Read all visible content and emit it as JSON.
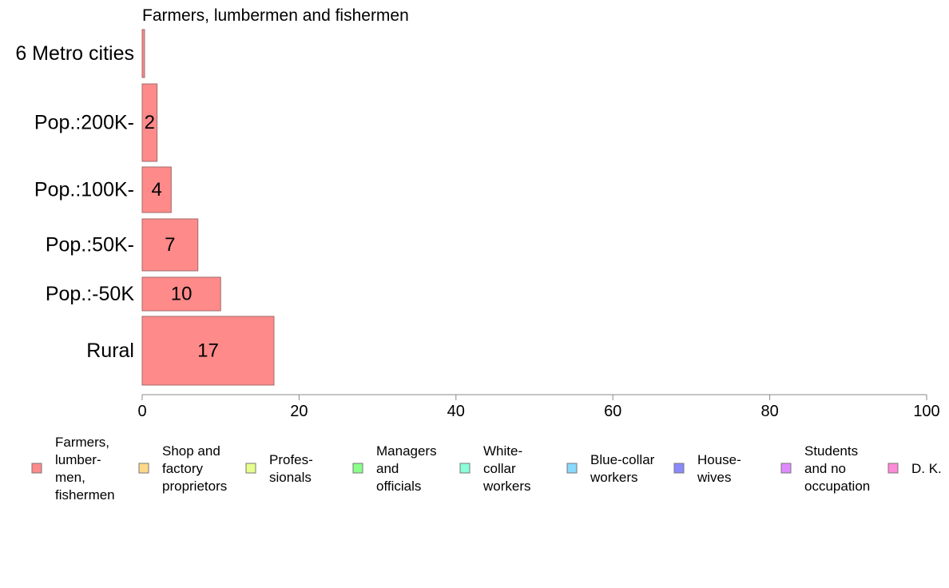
{
  "chart_data": {
    "type": "bar",
    "orientation": "horizontal",
    "title": "Farmers, lumbermen and fishermen",
    "xlabel": "",
    "ylabel": "",
    "xlim": [
      0,
      100
    ],
    "xticks": [
      "0",
      "20",
      "40",
      "60",
      "80",
      "100"
    ],
    "grid": false,
    "categories": [
      "6 Metro cities",
      "Pop.:200K-",
      "Pop.:100K-",
      "Pop.:50K-",
      "Pop.:-50K",
      "Rural"
    ],
    "series": [
      {
        "name": "Farmers, lumbermen, fishermen",
        "color": "#ff8a8a",
        "values": [
          0.3,
          1.9,
          3.7,
          7.1,
          10,
          16.8
        ],
        "labels": [
          "",
          "2",
          "4",
          "7",
          "10",
          "17"
        ]
      }
    ],
    "legend_placement": "bottom",
    "legend": [
      {
        "lines": [
          "Farmers,",
          "lumber-",
          "men,",
          "fishermen"
        ],
        "color": "#ff8a8a"
      },
      {
        "lines": [
          "Shop and",
          "factory",
          "proprietors"
        ],
        "color": "#ffd98a"
      },
      {
        "lines": [
          "Profes-",
          "sionals"
        ],
        "color": "#e6ff8a"
      },
      {
        "lines": [
          "Managers",
          "and",
          "officials"
        ],
        "color": "#8aff8a"
      },
      {
        "lines": [
          "White-",
          "collar",
          "workers"
        ],
        "color": "#8affd9"
      },
      {
        "lines": [
          "Blue-collar",
          "workers"
        ],
        "color": "#8ad9ff"
      },
      {
        "lines": [
          "House-",
          "wives"
        ],
        "color": "#8a8aff"
      },
      {
        "lines": [
          "Students",
          "and no",
          "occupation"
        ],
        "color": "#e08aff"
      },
      {
        "lines": [
          "D. K."
        ],
        "color": "#ff8ad9"
      }
    ]
  }
}
